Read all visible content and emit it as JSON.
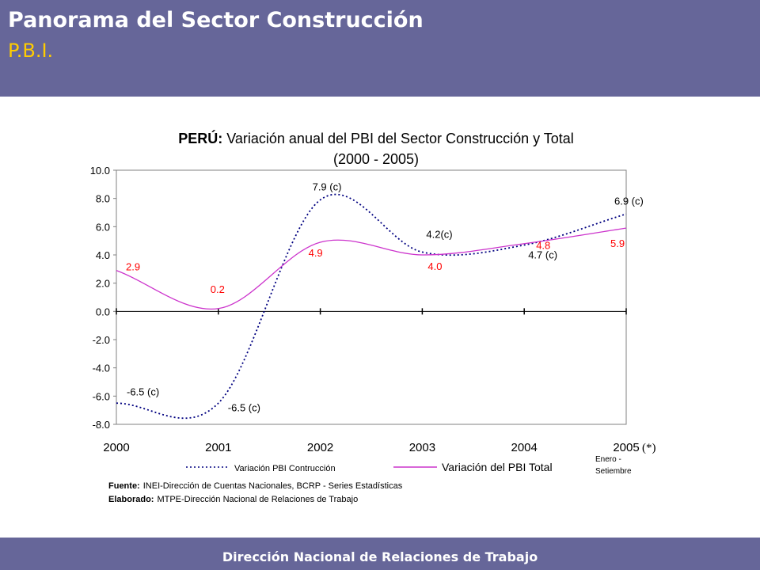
{
  "header": {
    "title": "Panorama del Sector Construcción",
    "subtitle": "P.B.I."
  },
  "footer": {
    "text": "Dirección Nacional de Relaciones de Trabajo"
  },
  "chart_data": {
    "type": "line",
    "title_bold": "PERÚ:",
    "title": "Variación anual del PBI del Sector Construcción y Total",
    "subtitle": "(2000 - 2005)",
    "x": [
      "2000",
      "2001",
      "2002",
      "2003",
      "2004",
      "2005"
    ],
    "x_suffix": "(*)",
    "ylim": [
      -8.0,
      10.0
    ],
    "yticks": [
      "10.0",
      "8.0",
      "6.0",
      "4.0",
      "2.0",
      "0.0",
      "-2.0",
      "-4.0",
      "-6.0",
      "-8.0"
    ],
    "series": [
      {
        "name": "Variación PBI Contrucción",
        "color": "#000080",
        "style": "dotted",
        "values": [
          -6.5,
          -6.5,
          7.9,
          4.2,
          4.7,
          6.9
        ],
        "labels": [
          "-6.5 (c)",
          "-6.5 (c)",
          "7.9 (c)",
          "4.2(c)",
          "4.7 (c)",
          "6.9 (c)"
        ],
        "label_color": "#000000"
      },
      {
        "name": "Variación del PBI Total",
        "color": "#cc33cc",
        "style": "solid",
        "values": [
          2.9,
          0.2,
          4.9,
          4.0,
          4.8,
          5.9
        ],
        "labels": [
          "2.9",
          "0.2",
          "4.9",
          "4.0",
          "4.8",
          "5.9"
        ],
        "label_color": "#ff0000"
      }
    ],
    "note": [
      "Enero -",
      "Setiembre"
    ],
    "source_label": "Fuente:",
    "source_text": "INEI-Dirección de Cuentas Nacionales, BCRP - Series Estadísticas",
    "elaborated_label": "Elaborado:",
    "elaborated_text": "MTPE-Dirección Nacional de Relaciones de Trabajo",
    "grid": false,
    "legend_position": "bottom"
  }
}
